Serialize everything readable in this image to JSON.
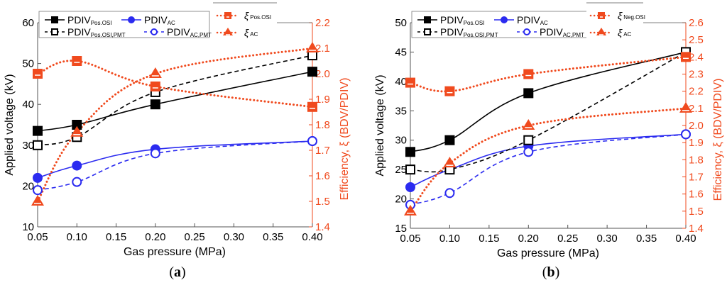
{
  "chart_data": [
    {
      "type": "line",
      "panel_label": "(a)",
      "panel_letter": "a",
      "xlabel": "Gas pressure (MPa)",
      "ylabel": "Applied voltage (kV)",
      "y2label": "Efficiency, ξ (BDV/PDIV)",
      "x": [
        0.05,
        0.1,
        0.2,
        0.4
      ],
      "xlim": [
        0.05,
        0.4
      ],
      "xticks": [
        "0.05",
        "0.10",
        "0.15",
        "0.20",
        "0.25",
        "0.30",
        "0.35",
        "0.40"
      ],
      "ylim": [
        10,
        60
      ],
      "yticks": [
        "10",
        "20",
        "30",
        "40",
        "50",
        "60"
      ],
      "y2lim": [
        1.4,
        2.2
      ],
      "y2ticks": [
        "1.4",
        "1.5",
        "1.6",
        "1.7",
        "1.8",
        "1.9",
        "2.0",
        "2.1",
        "2.2"
      ],
      "grid": false,
      "legend_position": "top",
      "series": [
        {
          "name": "PDIV_Pos.OSI",
          "label": "PDIV",
          "sub": "Pos.OSI",
          "axis": "left",
          "color": "#000000",
          "marker": "square-filled",
          "line": "solid",
          "values": [
            33.5,
            35,
            40,
            48
          ]
        },
        {
          "name": "PDIV_AC",
          "label": "PDIV",
          "sub": "AC",
          "axis": "left",
          "color": "#2b2bf0",
          "marker": "circle-filled",
          "line": "solid",
          "values": [
            22,
            25,
            29,
            31
          ]
        },
        {
          "name": "PDIV_Pos.OSI,PMT",
          "label": "PDIV",
          "sub": "Pos.OSI,PMT",
          "axis": "left",
          "color": "#000000",
          "marker": "square-open",
          "line": "dashed",
          "values": [
            30,
            32,
            43,
            52
          ]
        },
        {
          "name": "PDIV_AC,PMT",
          "label": "PDIV",
          "sub": "AC,PMT",
          "axis": "left",
          "color": "#2b2bf0",
          "marker": "circle-open",
          "line": "dashed",
          "values": [
            19,
            21,
            28,
            31
          ]
        },
        {
          "name": "ξ_Pos.OSI",
          "label": "ξ",
          "sub": "Pos.OSI",
          "axis": "right",
          "color": "#f04a1e",
          "marker": "square-orange",
          "line": "dotted",
          "values": [
            2.0,
            2.05,
            1.95,
            1.87
          ]
        },
        {
          "name": "ξ_AC",
          "label": "ξ",
          "sub": "AC",
          "axis": "right",
          "color": "#f04a1e",
          "marker": "triangle",
          "line": "dotted",
          "values": [
            1.5,
            1.77,
            2.0,
            2.1
          ]
        }
      ]
    },
    {
      "type": "line",
      "panel_label": "(b)",
      "panel_letter": "b",
      "xlabel": "Gas pressure (MPa)",
      "ylabel": "Applied voltage (kV)",
      "y2label": "Efficiency, ξ (BDV/PDIV)",
      "x": [
        0.05,
        0.1,
        0.2,
        0.4
      ],
      "xlim": [
        0.05,
        0.4
      ],
      "xticks": [
        "0.05",
        "0.10",
        "0.15",
        "0.20",
        "0.25",
        "0.30",
        "0.35",
        "0.40"
      ],
      "ylim": [
        15,
        50
      ],
      "yticks": [
        "15",
        "20",
        "25",
        "30",
        "35",
        "40",
        "45",
        "50"
      ],
      "y2lim": [
        1.4,
        2.6
      ],
      "y2ticks": [
        "1.4",
        "1.5",
        "1.6",
        "1.7",
        "1.8",
        "1.9",
        "2.0",
        "2.1",
        "2.2",
        "2.3",
        "2.4",
        "2.5",
        "2.6"
      ],
      "grid": false,
      "legend_position": "top",
      "series": [
        {
          "name": "PDIV_Pos.OSI",
          "label": "PDIV",
          "sub": "Pos.OSI",
          "axis": "left",
          "color": "#000000",
          "marker": "square-filled",
          "line": "solid",
          "values": [
            28,
            30,
            38,
            45
          ]
        },
        {
          "name": "PDIV_AC",
          "label": "PDIV",
          "sub": "AC",
          "axis": "left",
          "color": "#2b2bf0",
          "marker": "circle-filled",
          "line": "solid",
          "values": [
            22,
            25,
            29,
            31
          ]
        },
        {
          "name": "PDIV_Pos.OSI,PMT",
          "label": "PDIV",
          "sub": "Pos.OSI,PMT",
          "axis": "left",
          "color": "#000000",
          "marker": "square-open",
          "line": "dashed",
          "values": [
            25,
            25,
            30,
            45
          ]
        },
        {
          "name": "PDIV_AC,PMT",
          "label": "PDIV",
          "sub": "AC,PMT",
          "axis": "left",
          "color": "#2b2bf0",
          "marker": "circle-open",
          "line": "dashed",
          "values": [
            19,
            21,
            28,
            31
          ]
        },
        {
          "name": "ξ_Neg.OSI",
          "label": "ξ",
          "sub": "Neg.OSI",
          "axis": "right",
          "color": "#f04a1e",
          "marker": "square-orange",
          "line": "dotted",
          "values": [
            2.25,
            2.2,
            2.3,
            2.4
          ]
        },
        {
          "name": "ξ_AC",
          "label": "ξ",
          "sub": "AC",
          "axis": "right",
          "color": "#f04a1e",
          "marker": "triangle",
          "line": "dotted",
          "values": [
            1.5,
            1.78,
            2.0,
            2.1
          ]
        }
      ]
    }
  ]
}
